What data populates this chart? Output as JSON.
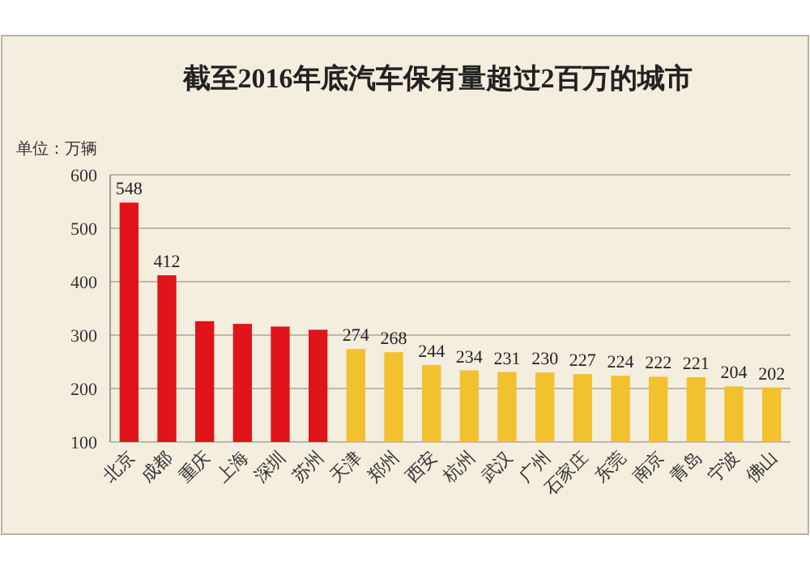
{
  "chart_data": {
    "type": "bar",
    "title": "截至2016年底汽车保有量超过2百万的城市",
    "annotations": [
      "单位：万辆"
    ],
    "categories": [
      "北京",
      "成都",
      "重庆",
      "上海",
      "深圳",
      "苏州",
      "天津",
      "郑州",
      "西安",
      "杭州",
      "武汉",
      "广州",
      "石家庄",
      "东莞",
      "南京",
      "青岛",
      "宁波",
      "佛山"
    ],
    "values": [
      548,
      412,
      326,
      321,
      316,
      310,
      274,
      268,
      244,
      234,
      231,
      230,
      227,
      224,
      222,
      221,
      204,
      202
    ],
    "value_labels": [
      "548",
      "412",
      null,
      null,
      null,
      null,
      "274",
      "268",
      "244",
      "234",
      "231",
      "230",
      "227",
      "224",
      "222",
      "221",
      "204",
      "202"
    ],
    "colors": [
      "#e0141a",
      "#e0141a",
      "#e0141a",
      "#e0141a",
      "#e0141a",
      "#e0141a",
      "#f2c12e",
      "#f2c12e",
      "#f2c12e",
      "#f2c12e",
      "#f2c12e",
      "#f2c12e",
      "#f2c12e",
      "#f2c12e",
      "#f2c12e",
      "#f2c12e",
      "#f2c12e",
      "#f2c12e"
    ],
    "ylim": [
      100,
      600
    ],
    "yticks": [
      100,
      200,
      300,
      400,
      500,
      600
    ],
    "grid": "y"
  }
}
